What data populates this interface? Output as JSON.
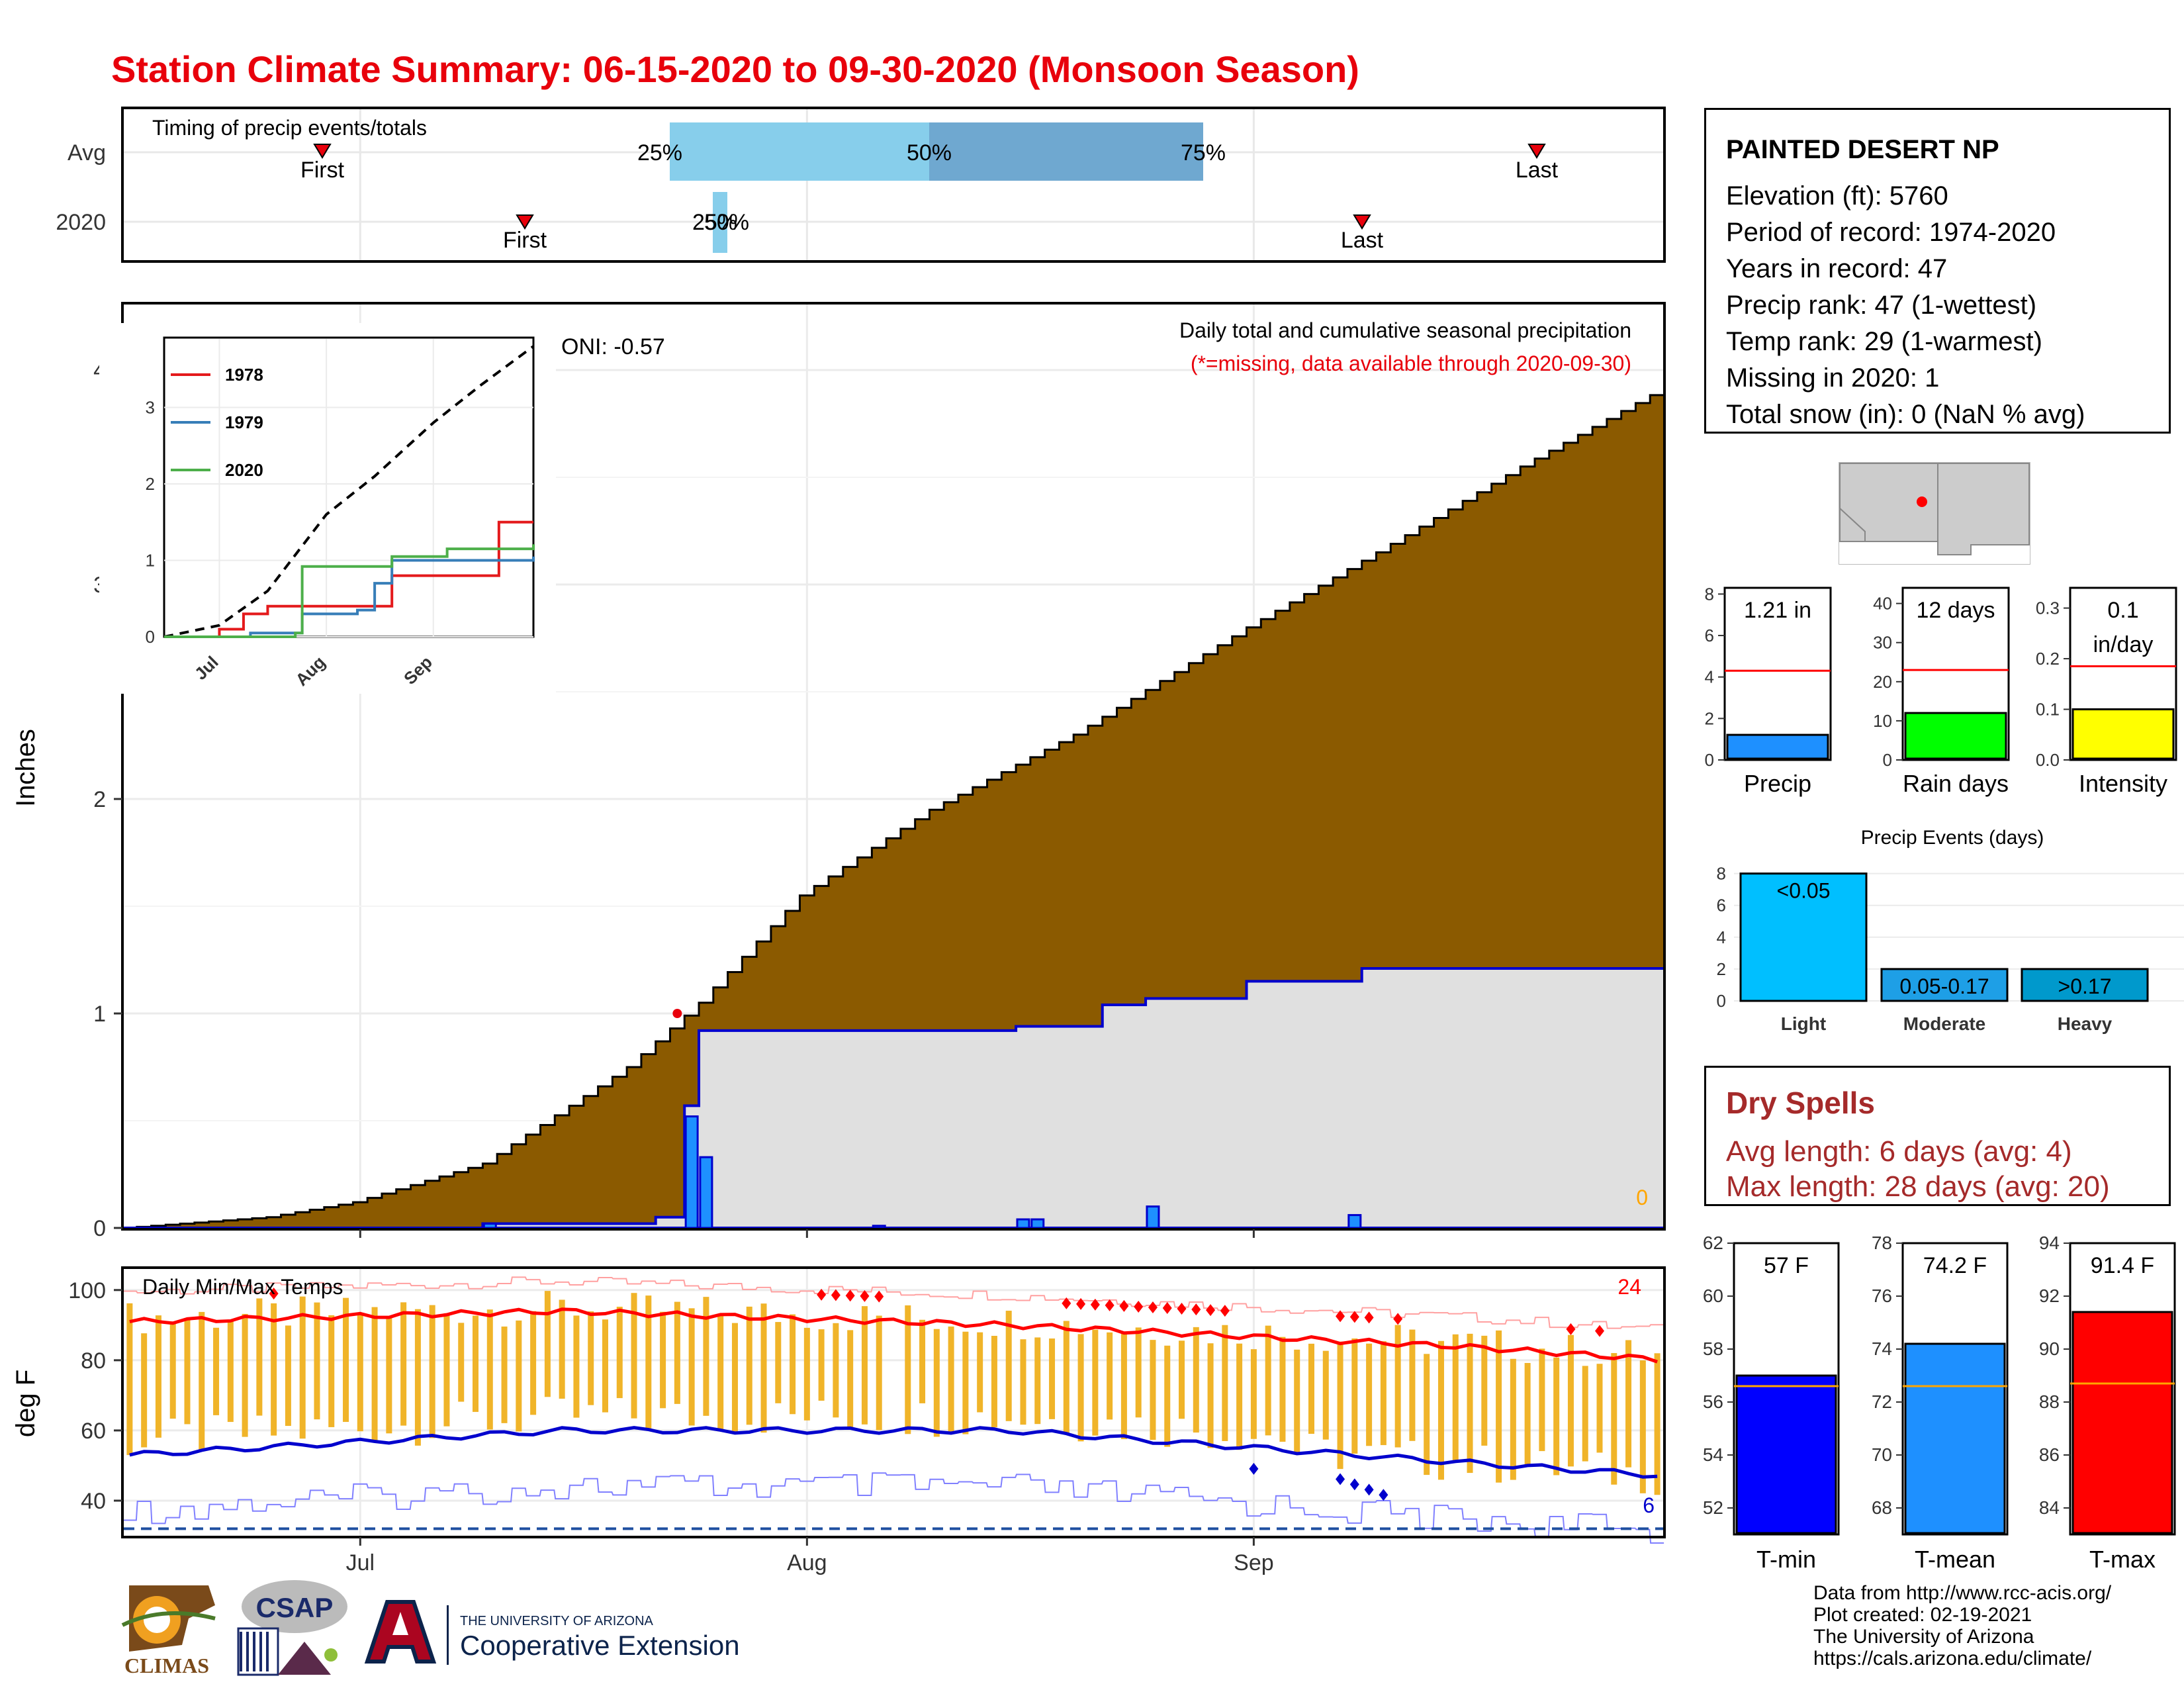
{
  "title": "Station Climate Summary: 06-15-2020 to 09-30-2020 (Monsoon Season)",
  "timing": {
    "panel_label": "Timing of precip events/totals",
    "rows": [
      "Avg",
      "2020"
    ],
    "avg": {
      "first": "First",
      "last": "Last",
      "q25": "25%",
      "q50": "50%",
      "q75": "75%"
    },
    "y2020": {
      "first": "First",
      "last": "Last",
      "q_overlap": "25%",
      "q_overlap2": "50%"
    }
  },
  "main": {
    "ylabel": "Inches",
    "yticks": [
      "0",
      "1",
      "2",
      "3",
      "4"
    ],
    "xticks": [
      "Jul",
      "Aug",
      "Sep"
    ],
    "desc": "Daily total and cumulative seasonal precipitation",
    "missing_note": "(*=missing, data available through 2020-09-30)",
    "oni": "ONI: -0.57",
    "corner_count": "0"
  },
  "inset": {
    "yticks": [
      "0",
      "1",
      "2",
      "3"
    ],
    "xticks": [
      "Jul",
      "Aug",
      "Sep"
    ],
    "legend": [
      {
        "name": "1978",
        "color": "#e41a1c"
      },
      {
        "name": "1979",
        "color": "#377eb8"
      },
      {
        "name": "2020",
        "color": "#4daf4a"
      }
    ]
  },
  "temps": {
    "label": "Daily Min/Max Temps",
    "ylabel": "deg F",
    "yticks": [
      "40",
      "60",
      "80",
      "100"
    ],
    "xticks": [
      "Jul",
      "Aug",
      "Sep"
    ],
    "hot_count": "24",
    "cold_count": "6"
  },
  "station": {
    "name": "PAINTED DESERT NP",
    "lines": [
      "Elevation (ft): 5760",
      "Period of record: 1974-2020",
      "Years in record: 47",
      "Precip rank: 47 (1-wettest)",
      "Temp rank: 29 (1-warmest)",
      "Missing in 2020: 1",
      "Total snow (in): 0 (NaN % avg)"
    ]
  },
  "bars": {
    "precip": {
      "label": "Precip",
      "value_text": "1.21 in",
      "yticks": [
        "0",
        "2",
        "4",
        "6",
        "8"
      ],
      "color": "#1e90ff"
    },
    "raindays": {
      "label": "Rain days",
      "value_text": "12 days",
      "yticks": [
        "0",
        "10",
        "20",
        "30",
        "40"
      ],
      "color": "#00ff00"
    },
    "intensity": {
      "label": "Intensity",
      "value_text_1": "0.1",
      "value_text_2": "in/day",
      "yticks": [
        "0.0",
        "0.1",
        "0.2",
        "0.3"
      ],
      "color": "#ffff00"
    }
  },
  "events": {
    "title": "Precip Events (days)",
    "yticks": [
      "0",
      "2",
      "4",
      "6",
      "8"
    ],
    "categories": [
      "Light",
      "Moderate",
      "Heavy"
    ],
    "bar_labels": [
      "<0.05",
      "0.05-0.17",
      ">0.17"
    ],
    "colors": [
      "#00bfff",
      "#1e9fe6",
      "#0099cc"
    ]
  },
  "dry": {
    "title": "Dry Spells",
    "line1": "Avg length: 6 days (avg: 4)",
    "line2": "Max length: 28 days (avg: 20)"
  },
  "tbars": {
    "tmin": {
      "label": "T-min",
      "value_text": "57 F",
      "yticks": [
        "52",
        "54",
        "56",
        "58",
        "60",
        "62"
      ],
      "color": "#0000ff"
    },
    "tmean": {
      "label": "T-mean",
      "value_text": "74.2 F",
      "yticks": [
        "68",
        "70",
        "72",
        "74",
        "76",
        "78"
      ],
      "color": "#1e90ff"
    },
    "tmax": {
      "label": "T-max",
      "value_text": "91.4 F",
      "yticks": [
        "84",
        "86",
        "88",
        "90",
        "92",
        "94"
      ],
      "color": "#ff0000"
    }
  },
  "credits": {
    "lines": [
      "Data from http://www.rcc-acis.org/",
      "Plot created: 02-19-2021",
      "The University of Arizona",
      "https://cals.arizona.edu/climate/"
    ],
    "logo_climas": "CLIMAS",
    "logo_csap": "CSAP",
    "ua_line1": "THE UNIVERSITY OF ARIZONA",
    "ua_line2": "Cooperative Extension"
  },
  "chart_data": [
    {
      "type": "area",
      "title": "Daily total and cumulative seasonal precipitation",
      "ylabel": "Inches",
      "ylim": [
        0,
        4.3
      ],
      "xlim": [
        "2020-06-15",
        "2020-09-30"
      ],
      "series": [
        {
          "name": "Average cumulative precip",
          "color": "#8b5a00",
          "x": [
            "2020-06-15",
            "2020-06-25",
            "2020-07-01",
            "2020-07-10",
            "2020-07-20",
            "2020-07-25",
            "2020-08-01",
            "2020-08-10",
            "2020-08-20",
            "2020-09-01",
            "2020-09-10",
            "2020-09-20",
            "2020-09-30"
          ],
          "y": [
            0,
            0.05,
            0.12,
            0.3,
            0.75,
            1.05,
            1.55,
            1.95,
            2.3,
            2.8,
            3.15,
            3.55,
            3.92
          ]
        },
        {
          "name": "2020 cumulative precip",
          "color": "#0000cd",
          "x": [
            "2020-06-15",
            "2020-07-10",
            "2020-07-22",
            "2020-07-24",
            "2020-07-25",
            "2020-08-16",
            "2020-08-22",
            "2020-08-25",
            "2020-09-01",
            "2020-09-09",
            "2020-09-30"
          ],
          "y": [
            0,
            0.02,
            0.05,
            0.57,
            0.92,
            0.94,
            1.04,
            1.07,
            1.15,
            1.21,
            1.21
          ]
        },
        {
          "name": "2020 daily precip",
          "color": "#1e90ff",
          "x": [
            "2020-07-10",
            "2020-07-24",
            "2020-07-25",
            "2020-08-06",
            "2020-08-16",
            "2020-08-17",
            "2020-08-25",
            "2020-09-08"
          ],
          "y": [
            0.02,
            0.52,
            0.33,
            0.01,
            0.04,
            0.04,
            0.1,
            0.06
          ]
        }
      ],
      "missing_marker": {
        "x": "2020-07-23",
        "y": 1.0
      }
    },
    {
      "type": "line",
      "title": "Inset: cumulative precip for analog years",
      "ylim": [
        0,
        3.8
      ],
      "series": [
        {
          "name": "Average",
          "style": "dashed",
          "color": "#000000",
          "x": [
            "2020-06-15",
            "2020-07-01",
            "2020-07-15",
            "2020-08-01",
            "2020-08-15",
            "2020-09-01",
            "2020-09-15",
            "2020-09-30"
          ],
          "y": [
            0,
            0.15,
            0.6,
            1.6,
            2.1,
            2.8,
            3.3,
            3.8
          ]
        },
        {
          "name": "1978",
          "color": "#e41a1c",
          "x": [
            "2020-06-15",
            "2020-07-01",
            "2020-07-08",
            "2020-07-15",
            "2020-08-01",
            "2020-08-20",
            "2020-09-15",
            "2020-09-20",
            "2020-09-30"
          ],
          "y": [
            0,
            0.1,
            0.3,
            0.4,
            0.4,
            0.8,
            0.8,
            1.5,
            1.5
          ]
        },
        {
          "name": "1979",
          "color": "#377eb8",
          "x": [
            "2020-06-15",
            "2020-07-10",
            "2020-07-25",
            "2020-08-10",
            "2020-08-15",
            "2020-08-20",
            "2020-09-30"
          ],
          "y": [
            0,
            0.05,
            0.3,
            0.35,
            0.7,
            1.0,
            1.05
          ]
        },
        {
          "name": "2020",
          "color": "#4daf4a",
          "x": [
            "2020-06-15",
            "2020-07-23",
            "2020-07-25",
            "2020-08-15",
            "2020-08-20",
            "2020-09-05",
            "2020-09-30"
          ],
          "y": [
            0,
            0.05,
            0.92,
            0.92,
            1.05,
            1.15,
            1.21
          ]
        }
      ]
    },
    {
      "type": "bar",
      "title": "Daily Min/Max Temps",
      "ylabel": "deg F",
      "ylim": [
        30,
        106
      ],
      "series": [
        {
          "name": "Average Tmax",
          "color": "#ff0000",
          "x": [
            "2020-06-15",
            "2020-07-15",
            "2020-08-15",
            "2020-09-15",
            "2020-09-30"
          ],
          "y": [
            91,
            94,
            90,
            84,
            80
          ]
        },
        {
          "name": "Average Tmin",
          "color": "#0000cd",
          "x": [
            "2020-06-15",
            "2020-07-15",
            "2020-08-15",
            "2020-09-15",
            "2020-09-30"
          ],
          "y": [
            53,
            60,
            60,
            51,
            47
          ]
        }
      ],
      "freeze_line": 32
    },
    {
      "type": "bar",
      "title": "Precip",
      "categories": [
        "Precip"
      ],
      "values": [
        1.21
      ],
      "average": 4.3,
      "ylim": [
        0,
        8
      ]
    },
    {
      "type": "bar",
      "title": "Rain days",
      "categories": [
        "Rain days"
      ],
      "values": [
        12
      ],
      "average": 23,
      "ylim": [
        0,
        40
      ]
    },
    {
      "type": "bar",
      "title": "Intensity",
      "categories": [
        "Intensity"
      ],
      "values": [
        0.1
      ],
      "average": 0.185,
      "ylim": [
        0,
        0.33
      ]
    },
    {
      "type": "bar",
      "title": "Precip Events (days)",
      "categories": [
        "Light",
        "Moderate",
        "Heavy"
      ],
      "values": [
        8,
        2,
        2
      ],
      "ylim": [
        0,
        8
      ]
    },
    {
      "type": "bar",
      "title": "T-min",
      "categories": [
        "T-min"
      ],
      "values": [
        57
      ],
      "average": 56.6,
      "ylim": [
        51,
        62
      ]
    },
    {
      "type": "bar",
      "title": "T-mean",
      "categories": [
        "T-mean"
      ],
      "values": [
        74.2
      ],
      "average": 72.6,
      "ylim": [
        67,
        78
      ]
    },
    {
      "type": "bar",
      "title": "T-max",
      "categories": [
        "T-max"
      ],
      "values": [
        91.4
      ],
      "average": 88.7,
      "ylim": [
        83,
        94
      ]
    }
  ]
}
